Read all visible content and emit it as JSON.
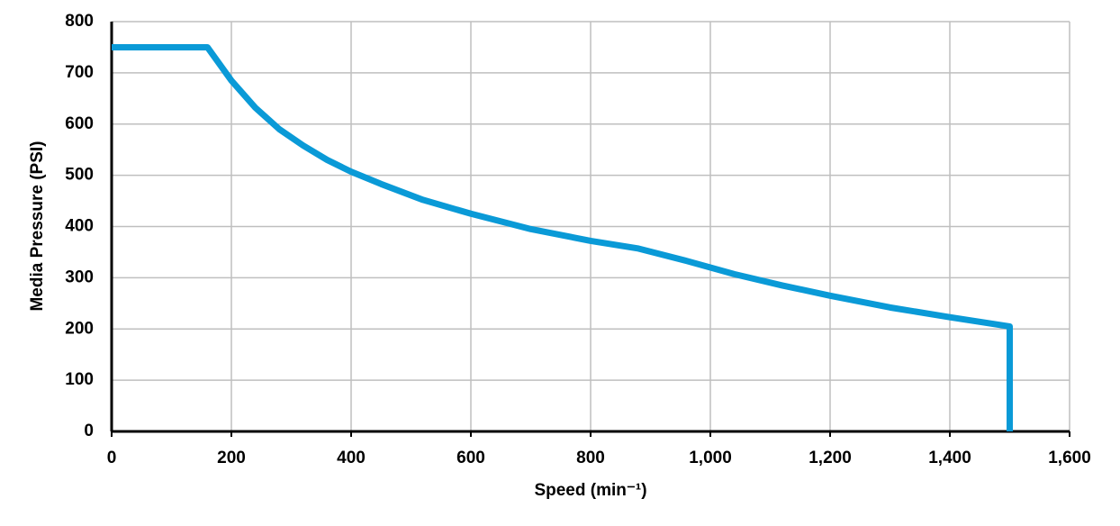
{
  "chart_data": {
    "type": "line",
    "x_label": "Speed (min⁻¹)",
    "y_label": "Media Pressure (PSI)",
    "x": [
      0,
      160,
      200,
      240,
      280,
      320,
      360,
      400,
      450,
      520,
      600,
      700,
      800,
      880,
      960,
      1040,
      1120,
      1200,
      1300,
      1400,
      1500,
      1500
    ],
    "values": [
      750,
      750,
      685,
      632,
      590,
      558,
      530,
      507,
      483,
      452,
      425,
      395,
      372,
      357,
      333,
      307,
      285,
      265,
      242,
      223,
      205,
      0
    ],
    "color": "#0a9ad7",
    "xlim": [
      0,
      1600
    ],
    "ylim": [
      0,
      800
    ],
    "xticks": [
      0,
      200,
      400,
      600,
      800,
      {
        "value": 1000,
        "label": "1,000"
      },
      {
        "value": 1200,
        "label": "1,200"
      },
      {
        "value": 1400,
        "label": "1,400"
      },
      {
        "value": 1600,
        "label": "1,600"
      }
    ],
    "yticks": [
      0,
      100,
      200,
      300,
      400,
      500,
      600,
      700,
      800
    ],
    "grid": true
  }
}
